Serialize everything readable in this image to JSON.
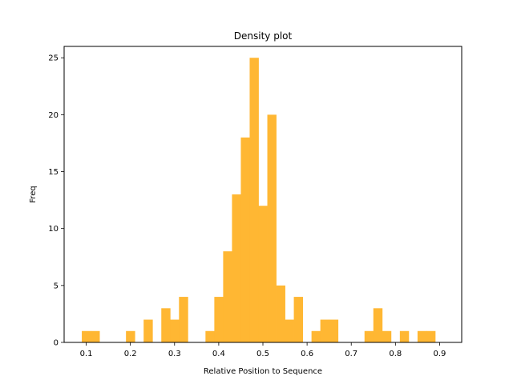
{
  "chart_data": {
    "type": "bar",
    "title": "Density plot",
    "xlabel": "Relative Position to Sequence",
    "ylabel": "Freq",
    "xlim": [
      0.05,
      0.95
    ],
    "ylim": [
      0,
      26
    ],
    "bin_width": 0.02,
    "bar_color": "#ffb733",
    "xticks": [
      0.1,
      0.2,
      0.3,
      0.4,
      0.5,
      0.6,
      0.7,
      0.8,
      0.9
    ],
    "yticks": [
      0,
      5,
      10,
      15,
      20,
      25
    ],
    "bins": [
      {
        "x0": 0.09,
        "x1": 0.11,
        "value": 1
      },
      {
        "x0": 0.11,
        "x1": 0.13,
        "value": 1
      },
      {
        "x0": 0.19,
        "x1": 0.21,
        "value": 1
      },
      {
        "x0": 0.23,
        "x1": 0.25,
        "value": 2
      },
      {
        "x0": 0.27,
        "x1": 0.29,
        "value": 3
      },
      {
        "x0": 0.29,
        "x1": 0.31,
        "value": 2
      },
      {
        "x0": 0.31,
        "x1": 0.33,
        "value": 4
      },
      {
        "x0": 0.37,
        "x1": 0.39,
        "value": 1
      },
      {
        "x0": 0.39,
        "x1": 0.41,
        "value": 4
      },
      {
        "x0": 0.41,
        "x1": 0.43,
        "value": 8
      },
      {
        "x0": 0.43,
        "x1": 0.45,
        "value": 13
      },
      {
        "x0": 0.45,
        "x1": 0.47,
        "value": 18
      },
      {
        "x0": 0.47,
        "x1": 0.49,
        "value": 25
      },
      {
        "x0": 0.49,
        "x1": 0.51,
        "value": 12
      },
      {
        "x0": 0.51,
        "x1": 0.53,
        "value": 20
      },
      {
        "x0": 0.53,
        "x1": 0.55,
        "value": 5
      },
      {
        "x0": 0.55,
        "x1": 0.57,
        "value": 2
      },
      {
        "x0": 0.57,
        "x1": 0.59,
        "value": 4
      },
      {
        "x0": 0.61,
        "x1": 0.63,
        "value": 1
      },
      {
        "x0": 0.63,
        "x1": 0.65,
        "value": 2
      },
      {
        "x0": 0.65,
        "x1": 0.67,
        "value": 2
      },
      {
        "x0": 0.73,
        "x1": 0.75,
        "value": 1
      },
      {
        "x0": 0.75,
        "x1": 0.77,
        "value": 3
      },
      {
        "x0": 0.77,
        "x1": 0.79,
        "value": 1
      },
      {
        "x0": 0.81,
        "x1": 0.83,
        "value": 1
      },
      {
        "x0": 0.85,
        "x1": 0.87,
        "value": 1
      },
      {
        "x0": 0.87,
        "x1": 0.89,
        "value": 1
      }
    ]
  }
}
